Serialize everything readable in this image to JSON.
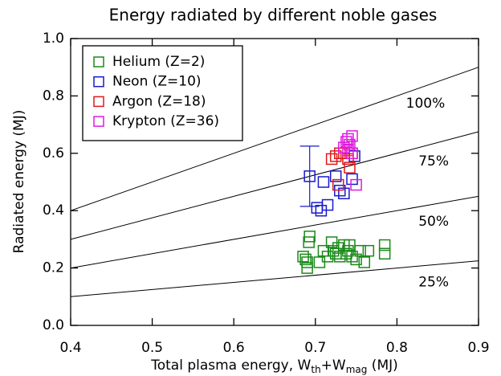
{
  "chart_data": {
    "type": "scatter",
    "title": "Energy radiated by different noble gases",
    "xlabel": [
      "Total plasma energy, W",
      "th",
      "+W",
      "mag",
      " (MJ)"
    ],
    "ylabel": "Radiated energy (MJ)",
    "xlim": [
      0.4,
      0.9
    ],
    "xticks": [
      0.4,
      0.5,
      0.6,
      0.7,
      0.8,
      0.9
    ],
    "ylim": [
      0,
      1
    ],
    "yticks": [
      {
        "value": 0,
        "label": "0.0"
      },
      0.2,
      0.4,
      0.6,
      0.8,
      {
        "value": 1,
        "label": "1.0"
      }
    ],
    "legend": "upper left",
    "reference_lines": {
      "values": [
        100,
        75,
        50,
        25
      ],
      "value_labels": [
        "100%",
        "75%",
        "50%",
        "25%"
      ]
    },
    "series": [
      {
        "name": "Helium (Z=2)",
        "color": "#1a8a1a",
        "x": [
          0.685,
          0.688,
          0.69,
          0.69,
          0.692,
          0.693,
          0.705,
          0.71,
          0.715,
          0.72,
          0.722,
          0.725,
          0.728,
          0.73,
          0.735,
          0.738,
          0.74,
          0.742,
          0.745,
          0.75,
          0.755,
          0.76,
          0.765,
          0.785,
          0.785
        ],
        "y": [
          0.24,
          0.23,
          0.2,
          0.22,
          0.29,
          0.31,
          0.22,
          0.26,
          0.24,
          0.29,
          0.26,
          0.25,
          0.27,
          0.24,
          0.28,
          0.25,
          0.26,
          0.28,
          0.24,
          0.23,
          0.26,
          0.22,
          0.26,
          0.28,
          0.25
        ]
      },
      {
        "name": "Neon (Z=10)",
        "color": "#1a1acc",
        "x": [
          0.693,
          0.702,
          0.707,
          0.71,
          0.715,
          0.725,
          0.73,
          0.735,
          0.745,
          0.748
        ],
        "y": [
          0.52,
          0.41,
          0.4,
          0.5,
          0.42,
          0.52,
          0.47,
          0.46,
          0.51,
          0.59
        ],
        "errors": [
          0.105,
          null,
          null,
          null,
          null,
          null,
          null,
          null,
          null,
          null
        ]
      },
      {
        "name": "Argon (Z=18)",
        "color": "#e01a1a",
        "x": [
          0.72,
          0.725,
          0.728,
          0.735,
          0.74,
          0.742,
          0.745,
          0.73
        ],
        "y": [
          0.58,
          0.59,
          0.49,
          0.6,
          0.58,
          0.55,
          0.6,
          0.6
        ]
      },
      {
        "name": "Krypton (Z=36)",
        "color": "#e01ae0",
        "x": [
          0.735,
          0.738,
          0.74,
          0.742,
          0.745,
          0.745,
          0.75,
          0.74
        ],
        "y": [
          0.62,
          0.64,
          0.65,
          0.63,
          0.6,
          0.66,
          0.49,
          0.61
        ]
      }
    ]
  }
}
